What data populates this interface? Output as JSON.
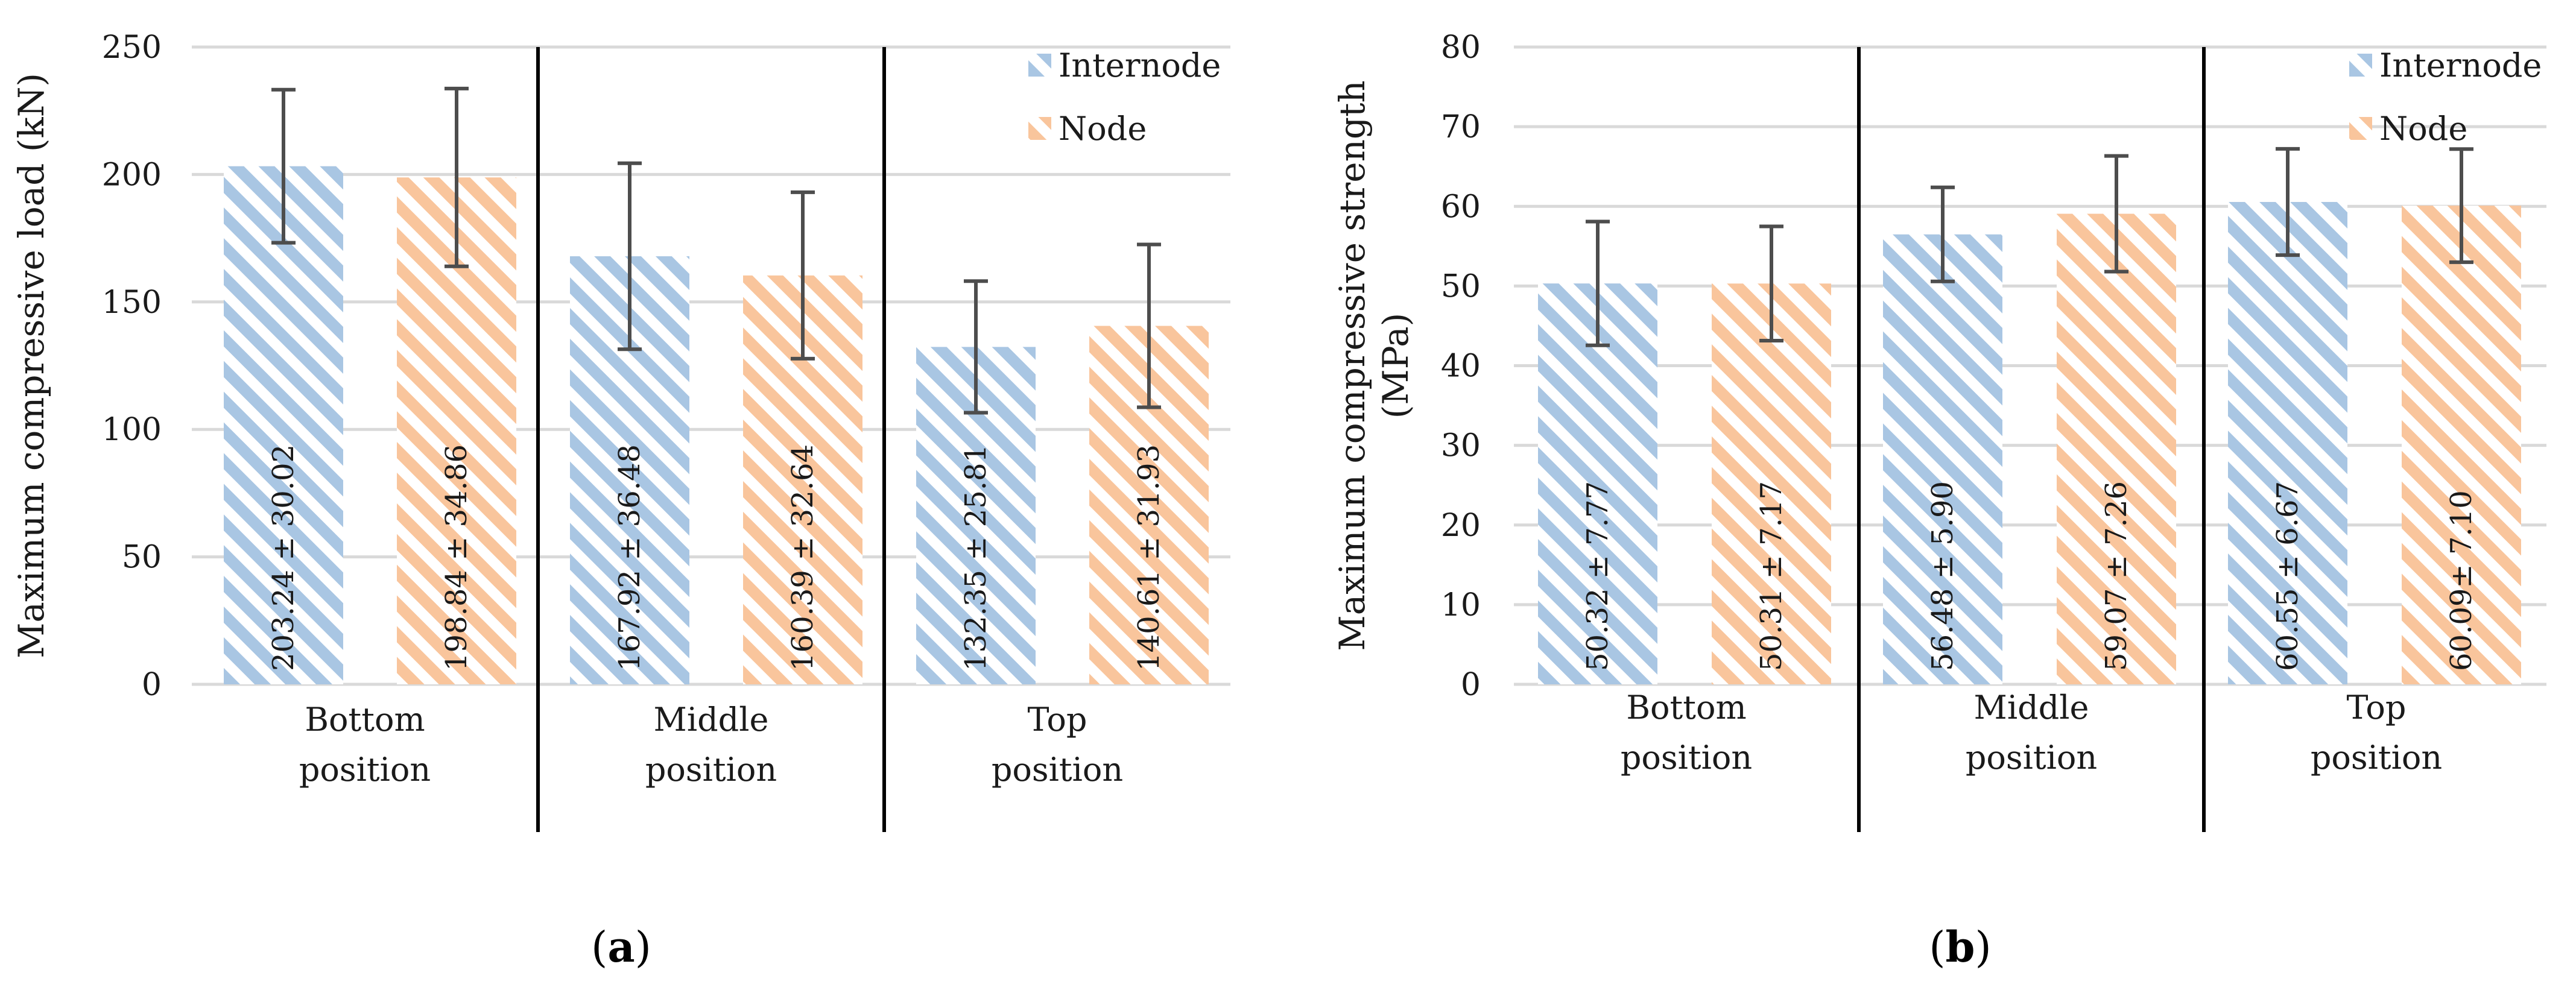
{
  "colors": {
    "internode": "#a9c6e3",
    "node": "#f9c59c",
    "grid": "#d9d9d9",
    "errorbar": "#4d4d4d",
    "divider": "#000000"
  },
  "chart_data": [
    {
      "type": "bar",
      "panel": "(a)",
      "panel_letter": "a",
      "ylabel": "Maximum compressive load (kN)",
      "ylim": [
        0,
        250
      ],
      "yticks": [
        0,
        50,
        100,
        150,
        200,
        250
      ],
      "grid": true,
      "legend_position": "top-right",
      "categories": [
        {
          "line1": "Bottom",
          "line2": "position"
        },
        {
          "line1": "Middle",
          "line2": "position"
        },
        {
          "line1": "Top",
          "line2": "position"
        }
      ],
      "series": [
        {
          "name": "Internode",
          "color_key": "internode",
          "values": [
            203.24,
            167.92,
            132.35
          ],
          "errors": [
            30.02,
            36.48,
            25.81
          ],
          "labels": [
            "203.24 ± 30.02",
            "167.92 ± 36.48",
            "132.35 ± 25.81"
          ]
        },
        {
          "name": "Node",
          "color_key": "node",
          "values": [
            198.84,
            160.39,
            140.61
          ],
          "errors": [
            34.86,
            32.64,
            31.93
          ],
          "labels": [
            "198.84 ± 34.86",
            "160.39 ± 32.64",
            "140.61 ± 31.93"
          ]
        }
      ]
    },
    {
      "type": "bar",
      "panel": "(b)",
      "panel_letter": "b",
      "ylabel": "Maximum compressive strength",
      "ylabel_line2": "(MPa)",
      "ylim": [
        0,
        80
      ],
      "yticks": [
        0,
        10,
        20,
        30,
        40,
        50,
        60,
        70,
        80
      ],
      "grid": true,
      "legend_position": "top-right",
      "categories": [
        {
          "line1": "Bottom",
          "line2": "position"
        },
        {
          "line1": "Middle",
          "line2": "position"
        },
        {
          "line1": "Top",
          "line2": "position"
        }
      ],
      "series": [
        {
          "name": "Internode",
          "color_key": "internode",
          "values": [
            50.32,
            56.48,
            60.55
          ],
          "errors": [
            7.77,
            5.9,
            6.67
          ],
          "labels": [
            "50.32 ± 7.77",
            "56.48 ± 5.90",
            "60.55 ± 6.67"
          ]
        },
        {
          "name": "Node",
          "color_key": "node",
          "values": [
            50.31,
            59.07,
            60.09
          ],
          "errors": [
            7.17,
            7.26,
            7.1
          ],
          "labels": [
            "50.31 ± 7.17",
            "59.07 ± 7.26",
            "60.09± 7.10"
          ]
        }
      ]
    }
  ]
}
